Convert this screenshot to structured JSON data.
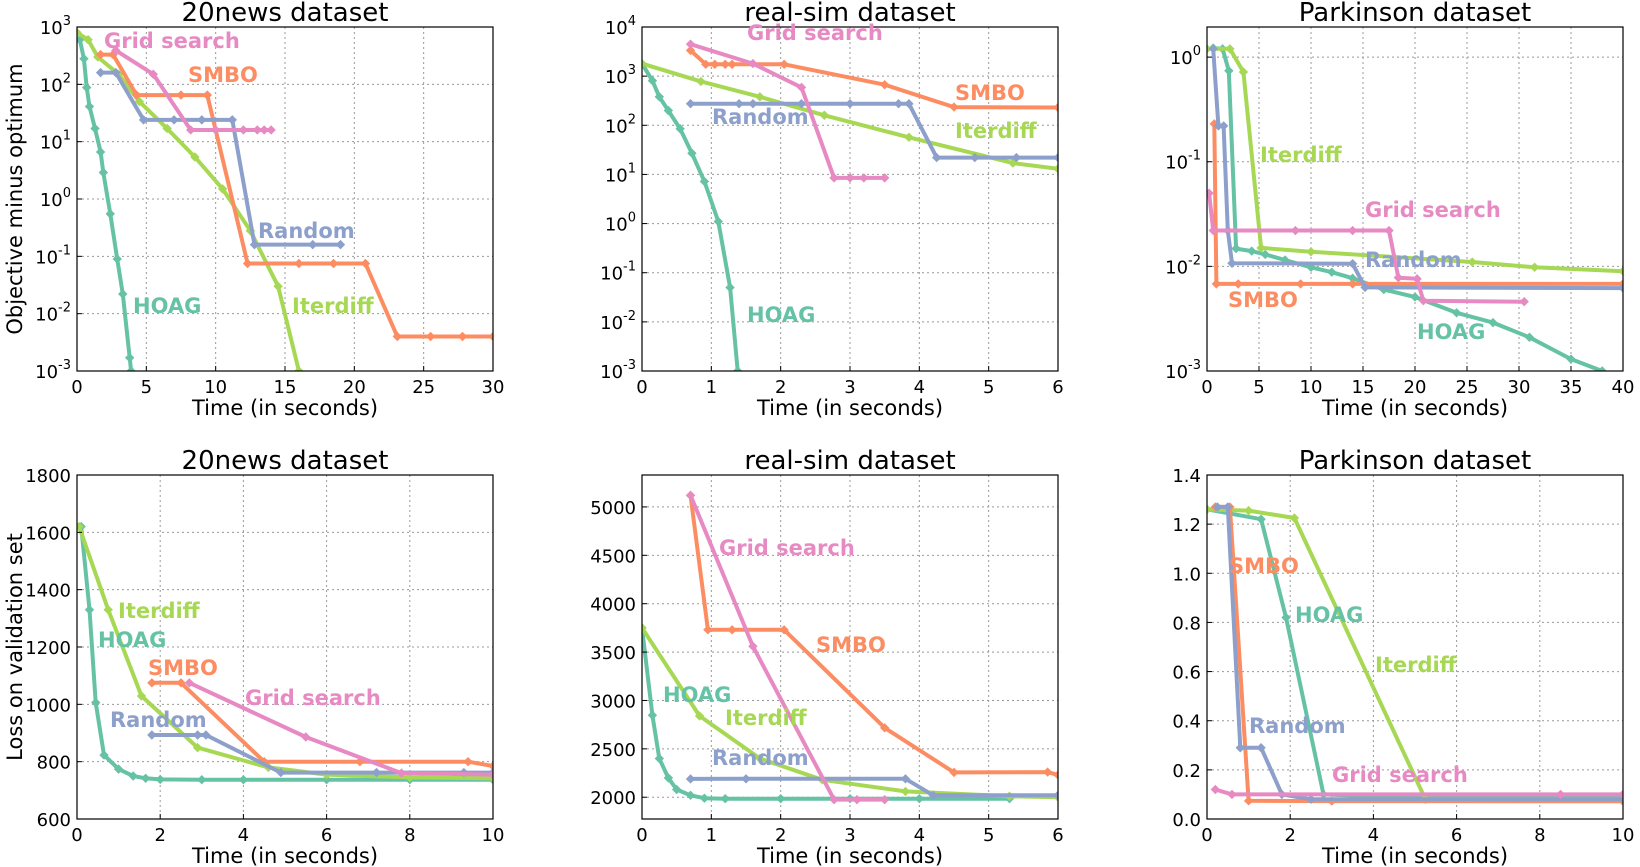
{
  "colors": {
    "HOAG": "#66c2a5",
    "Iterdiff": "#a6d854",
    "SMBO": "#fc8d62",
    "Random": "#8da0cb",
    "Grid search": "#e78ac3"
  },
  "chart_data": [
    {
      "type": "line",
      "title": "20news dataset",
      "xlabel": "Time (in seconds)",
      "ylabel": "Objective minus optimum",
      "yscale": "log",
      "xlim": [
        0,
        30
      ],
      "ylim": [
        0.001,
        1000
      ],
      "grid": true,
      "xticks": [
        0,
        5,
        10,
        15,
        20,
        25,
        30
      ],
      "xtick_labels": [
        "0",
        "5",
        "10",
        "15",
        "20",
        "25",
        "30"
      ],
      "yticks": [
        0.001,
        0.01,
        0.1,
        1,
        10,
        100,
        1000
      ],
      "ytick_labels": [
        "10^-3",
        "10^-2",
        "10^-1",
        "10^0",
        "10^1",
        "10^2",
        "10^3"
      ],
      "series": [
        {
          "name": "HOAG",
          "x": [
            0.2,
            0.5,
            0.7,
            0.9,
            1.3,
            1.7,
            1.9,
            2.4,
            2.9,
            3.3,
            3.8,
            3.9
          ],
          "y": [
            600,
            280,
            88,
            41,
            17,
            6.6,
            2.9,
            0.55,
            0.09,
            0.022,
            0.0017,
            0.001
          ]
        },
        {
          "name": "Iterdiff",
          "x": [
            0,
            0.8,
            1.5,
            3,
            4.5,
            6.5,
            8.5,
            10.5,
            12.5,
            14.5,
            16
          ],
          "y": [
            800,
            600,
            300,
            150,
            50,
            17,
            5.4,
            1.5,
            0.28,
            0.03,
            0.001
          ]
        },
        {
          "name": "SMBO",
          "x": [
            1.7,
            2.6,
            4.3,
            7.5,
            9.4,
            12.3,
            16,
            18.5,
            20.8,
            23.1,
            25.5,
            27.8,
            30
          ],
          "y": [
            330,
            330,
            65,
            65,
            65,
            0.075,
            0.075,
            0.075,
            0.075,
            0.004,
            0.004,
            0.004,
            0.004
          ]
        },
        {
          "name": "Random",
          "x": [
            1.7,
            2.8,
            4.8,
            7,
            9,
            11.2,
            12.8,
            17,
            19
          ],
          "y": [
            160,
            160,
            24,
            24,
            24,
            24,
            0.16,
            0.16,
            0.16
          ]
        },
        {
          "name": "Grid search",
          "x": [
            2.8,
            5.5,
            8.2,
            10,
            12,
            13,
            13.5,
            14
          ],
          "y": [
            390,
            150,
            16,
            16,
            16,
            16,
            16,
            16
          ]
        }
      ]
    },
    {
      "type": "line",
      "title": "real-sim dataset",
      "xlabel": "Time (in seconds)",
      "ylabel": "",
      "yscale": "log",
      "xlim": [
        0,
        6
      ],
      "ylim": [
        0.001,
        10000
      ],
      "grid": true,
      "xticks": [
        0,
        1,
        2,
        3,
        4,
        5,
        6
      ],
      "xtick_labels": [
        "0",
        "1",
        "2",
        "3",
        "4",
        "5",
        "6"
      ],
      "yticks": [
        0.001,
        0.01,
        0.1,
        1,
        10,
        100,
        1000,
        10000
      ],
      "ytick_labels": [
        "10^-3",
        "10^-2",
        "10^-1",
        "10^0",
        "10^1",
        "10^2",
        "10^3",
        "10^4"
      ],
      "series": [
        {
          "name": "HOAG",
          "x": [
            0,
            0.15,
            0.25,
            0.38,
            0.55,
            0.72,
            0.9,
            1.1,
            1.27,
            1.38
          ],
          "y": [
            1790,
            810,
            380,
            200,
            85,
            27,
            7.2,
            1.1,
            0.05,
            0.001
          ]
        },
        {
          "name": "Iterdiff",
          "x": [
            0,
            0.85,
            1.7,
            2.63,
            3.85,
            5.35,
            6
          ],
          "y": [
            1800,
            780,
            380,
            160,
            57,
            17,
            13
          ]
        },
        {
          "name": "SMBO",
          "x": [
            0.7,
            0.92,
            1.05,
            1.2,
            1.3,
            2.05,
            3.5,
            4.5,
            6
          ],
          "y": [
            3340,
            1740,
            1740,
            1740,
            1740,
            1740,
            670,
            235,
            230
          ]
        },
        {
          "name": "Random",
          "x": [
            0.7,
            1.4,
            1.6,
            2.3,
            3,
            3.7,
            3.85,
            4.25,
            4.8,
            5.4,
            6
          ],
          "y": [
            275,
            275,
            275,
            275,
            275,
            275,
            275,
            22,
            22,
            22,
            22
          ]
        },
        {
          "name": "Grid search",
          "x": [
            0.7,
            1.6,
            2.3,
            2.77,
            3,
            3.2,
            3.5
          ],
          "y": [
            4470,
            1800,
            590,
            8.5,
            8.5,
            8.5,
            8.5
          ]
        }
      ]
    },
    {
      "type": "line",
      "title": "Parkinson dataset",
      "xlabel": "Time (in seconds)",
      "ylabel": "",
      "yscale": "log",
      "xlim": [
        0,
        40
      ],
      "ylim": [
        0.001,
        1.94
      ],
      "grid": true,
      "xticks": [
        0,
        5,
        10,
        15,
        20,
        25,
        30,
        35,
        40
      ],
      "xtick_labels": [
        "0",
        "5",
        "10",
        "15",
        "20",
        "25",
        "30",
        "35",
        "40"
      ],
      "yticks": [
        0.001,
        0.01,
        0.1,
        1
      ],
      "ytick_labels": [
        "10^-3",
        "10^-2",
        "10^-1",
        "10^0"
      ],
      "series": [
        {
          "name": "HOAG",
          "x": [
            0.6,
            1.5,
            2.1,
            2.8,
            4.3,
            5.6,
            7.5,
            10,
            12,
            14,
            17,
            20,
            24,
            27.5,
            31,
            35,
            38
          ],
          "y": [
            1.22,
            1.2,
            0.74,
            0.0148,
            0.014,
            0.013,
            0.0115,
            0.0098,
            0.0088,
            0.0077,
            0.006,
            0.0051,
            0.0036,
            0.0029,
            0.0021,
            0.0013,
            0.001
          ]
        },
        {
          "name": "Iterdiff",
          "x": [
            0,
            2.2,
            3.5,
            5.2,
            10,
            25.5,
            31.5,
            40
          ],
          "y": [
            1.2,
            1.2,
            0.72,
            0.015,
            0.0138,
            0.011,
            0.0098,
            0.009
          ]
        },
        {
          "name": "SMBO",
          "x": [
            0.7,
            0.9,
            3,
            9,
            14,
            40
          ],
          "y": [
            0.23,
            0.0068,
            0.0068,
            0.0068,
            0.0068,
            0.0068
          ]
        },
        {
          "name": "Random",
          "x": [
            0.6,
            1.1,
            1.6,
            2,
            2.4,
            14,
            15.2,
            40
          ],
          "y": [
            1.2,
            0.22,
            0.22,
            0.022,
            0.0107,
            0.0106,
            0.0063,
            0.0062
          ]
        },
        {
          "name": "Grid search",
          "x": [
            0.2,
            0.6,
            8.5,
            14,
            17.5,
            18.4,
            20.2,
            20.8,
            30.5
          ],
          "y": [
            0.05,
            0.022,
            0.022,
            0.022,
            0.022,
            0.0078,
            0.0076,
            0.0047,
            0.0046
          ]
        }
      ]
    },
    {
      "type": "line",
      "title": "20news dataset",
      "xlabel": "Time (in seconds)",
      "ylabel": "Loss on validation set",
      "yscale": "linear",
      "xlim": [
        0,
        10
      ],
      "ylim": [
        600,
        1800
      ],
      "grid": true,
      "xticks": [
        0,
        2,
        4,
        6,
        8,
        10
      ],
      "xtick_labels": [
        "0",
        "2",
        "4",
        "6",
        "8",
        "10"
      ],
      "yticks": [
        600,
        800,
        1000,
        1200,
        1400,
        1600,
        1800
      ],
      "ytick_labels": [
        "600",
        "800",
        "1000",
        "1200",
        "1400",
        "1600",
        "1800"
      ],
      "series": [
        {
          "name": "HOAG",
          "x": [
            0.1,
            0.3,
            0.45,
            0.65,
            1,
            1.35,
            1.65,
            2,
            3,
            4,
            6,
            8,
            10
          ],
          "y": [
            1620,
            1330,
            1006,
            823,
            774,
            750,
            742,
            738,
            737,
            737,
            737,
            737,
            737
          ]
        },
        {
          "name": "Iterdiff",
          "x": [
            0.05,
            0.75,
            1.55,
            2.9,
            4.6,
            6,
            8,
            10
          ],
          "y": [
            1620,
            1330,
            1029,
            849,
            780,
            755,
            745,
            742
          ]
        },
        {
          "name": "SMBO",
          "x": [
            1.8,
            2.5,
            4.5,
            6.8,
            9.4,
            10
          ],
          "y": [
            1075,
            1075,
            800,
            800,
            800,
            785
          ]
        },
        {
          "name": "Random",
          "x": [
            1.8,
            2.9,
            3.1,
            4.9,
            7.2,
            9.3,
            10
          ],
          "y": [
            893,
            893,
            893,
            762,
            762,
            762,
            762
          ]
        },
        {
          "name": "Grid search",
          "x": [
            2.7,
            5.5,
            7.8,
            10
          ],
          "y": [
            1075,
            886,
            760,
            755
          ]
        }
      ]
    },
    {
      "type": "line",
      "title": "real-sim dataset",
      "xlabel": "Time (in seconds)",
      "ylabel": "",
      "yscale": "linear",
      "xlim": [
        0,
        6
      ],
      "ylim": [
        1775,
        5330
      ],
      "grid": true,
      "xticks": [
        0,
        1,
        2,
        3,
        4,
        5,
        6
      ],
      "xtick_labels": [
        "0",
        "1",
        "2",
        "3",
        "4",
        "5",
        "6"
      ],
      "yticks": [
        2000,
        2500,
        3000,
        3500,
        4000,
        4500,
        5000
      ],
      "ytick_labels": [
        "2000",
        "2500",
        "3000",
        "3500",
        "4000",
        "4500",
        "5000"
      ],
      "series": [
        {
          "name": "HOAG",
          "x": [
            0,
            0.15,
            0.25,
            0.38,
            0.5,
            0.7,
            0.9,
            1.2,
            2,
            3,
            4,
            5.3
          ],
          "y": [
            3750,
            2847,
            2400,
            2200,
            2080,
            2020,
            1990,
            1985,
            1985,
            1985,
            1985,
            1985
          ]
        },
        {
          "name": "Iterdiff",
          "x": [
            0,
            0.83,
            1.7,
            2.6,
            3.8,
            5.3,
            6
          ],
          "y": [
            3750,
            2840,
            2400,
            2180,
            2060,
            2010,
            2000
          ]
        },
        {
          "name": "SMBO",
          "x": [
            0.7,
            0.95,
            1.3,
            2.05,
            3.5,
            4.5,
            5.85,
            6
          ],
          "y": [
            5120,
            3731,
            3730,
            3730,
            2717,
            2257,
            2260,
            2230
          ]
        },
        {
          "name": "Random",
          "x": [
            0.7,
            1.5,
            3.8,
            4.2,
            6
          ],
          "y": [
            2189,
            2190,
            2190,
            2020,
            2020
          ]
        },
        {
          "name": "Grid search",
          "x": [
            0.7,
            1.6,
            2.77,
            3.1,
            3.5
          ],
          "y": [
            5120,
            3560,
            1975,
            1975,
            1975
          ]
        }
      ]
    },
    {
      "type": "line",
      "title": "Parkinson dataset",
      "xlabel": "Time (in seconds)",
      "ylabel": "",
      "yscale": "linear",
      "xlim": [
        0,
        10
      ],
      "ylim": [
        0,
        1.4
      ],
      "grid": true,
      "xticks": [
        0,
        2,
        4,
        6,
        8,
        10
      ],
      "xtick_labels": [
        "0",
        "2",
        "4",
        "6",
        "8",
        "10"
      ],
      "yticks": [
        0,
        0.2,
        0.4,
        0.6,
        0.8,
        1.0,
        1.2,
        1.4
      ],
      "ytick_labels": [
        "0.0",
        "0.2",
        "0.4",
        "0.6",
        "0.8",
        "1.0",
        "1.2",
        "1.4"
      ],
      "series": [
        {
          "name": "HOAG",
          "x": [
            0,
            1.3,
            1.9,
            2.8,
            5,
            10
          ],
          "y": [
            1.26,
            1.22,
            0.82,
            0.1,
            0.085,
            0.085
          ]
        },
        {
          "name": "Iterdiff",
          "x": [
            0,
            1,
            2.1,
            5.25,
            10
          ],
          "y": [
            1.26,
            1.255,
            1.225,
            0.08,
            0.08
          ]
        },
        {
          "name": "SMBO",
          "x": [
            0.2,
            0.55,
            1,
            3,
            10
          ],
          "y": [
            1.27,
            1.27,
            0.074,
            0.073,
            0.072
          ]
        },
        {
          "name": "Random",
          "x": [
            0.25,
            0.5,
            0.8,
            1.3,
            1.8,
            2.5,
            10
          ],
          "y": [
            1.27,
            1.27,
            0.29,
            0.29,
            0.1,
            0.08,
            0.08
          ]
        },
        {
          "name": "Grid search",
          "x": [
            0.2,
            0.6,
            8.5,
            10
          ],
          "y": [
            0.12,
            0.1,
            0.1,
            0.1
          ]
        }
      ]
    }
  ]
}
